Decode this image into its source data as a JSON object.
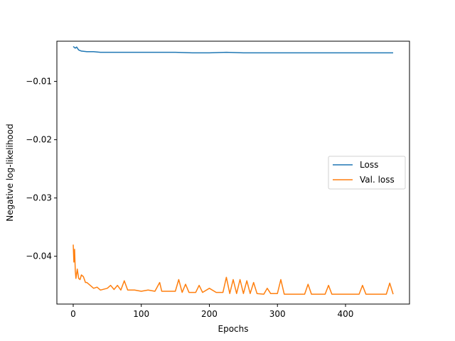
{
  "chart_data": {
    "type": "line",
    "title": "",
    "xlabel": "Epochs",
    "ylabel": "Negative log-likelihood",
    "xlim": [
      -24,
      494
    ],
    "ylim": [
      -0.0482,
      -0.0031
    ],
    "xticks": [
      0,
      100,
      200,
      300,
      400
    ],
    "xtick_labels": [
      "0",
      "100",
      "200",
      "300",
      "400"
    ],
    "yticks": [
      -0.04,
      -0.03,
      -0.02,
      -0.01
    ],
    "ytick_labels": [
      "−0.04",
      "−0.03",
      "−0.02",
      "−0.01"
    ],
    "grid": false,
    "legend_position": "center-right",
    "series": [
      {
        "name": "Loss",
        "color": "#1f77b4",
        "x": [
          0,
          3,
          5,
          8,
          12,
          20,
          30,
          40,
          50,
          75,
          100,
          125,
          150,
          175,
          200,
          225,
          250,
          275,
          300,
          325,
          350,
          375,
          400,
          425,
          450,
          470
        ],
        "y": [
          -0.004,
          -0.0043,
          -0.0041,
          -0.0046,
          -0.0048,
          -0.0049,
          -0.0049,
          -0.005,
          -0.005,
          -0.005,
          -0.005,
          -0.005,
          -0.005,
          -0.0051,
          -0.0051,
          -0.005,
          -0.0051,
          -0.0051,
          -0.0051,
          -0.0051,
          -0.0051,
          -0.0051,
          -0.0051,
          -0.0051,
          -0.0051,
          -0.0051
        ]
      },
      {
        "name": "Val. loss",
        "color": "#ff7f0e",
        "x": [
          0,
          1,
          2,
          3,
          4,
          6,
          8,
          10,
          12,
          15,
          18,
          20,
          25,
          30,
          35,
          40,
          50,
          55,
          60,
          65,
          70,
          75,
          80,
          90,
          100,
          110,
          120,
          127,
          130,
          140,
          150,
          155,
          160,
          165,
          170,
          180,
          185,
          190,
          200,
          210,
          220,
          225,
          230,
          235,
          240,
          245,
          250,
          255,
          260,
          265,
          270,
          280,
          285,
          290,
          300,
          305,
          310,
          320,
          330,
          340,
          345,
          350,
          360,
          370,
          375,
          380,
          390,
          400,
          410,
          420,
          425,
          430,
          440,
          450,
          460,
          465,
          470
        ],
        "y": [
          -0.038,
          -0.041,
          -0.0388,
          -0.0425,
          -0.0438,
          -0.0422,
          -0.0438,
          -0.044,
          -0.0432,
          -0.0435,
          -0.0445,
          -0.0445,
          -0.045,
          -0.0455,
          -0.0453,
          -0.0458,
          -0.0455,
          -0.045,
          -0.0457,
          -0.045,
          -0.0458,
          -0.0442,
          -0.0458,
          -0.0458,
          -0.046,
          -0.0458,
          -0.046,
          -0.0445,
          -0.046,
          -0.046,
          -0.046,
          -0.044,
          -0.0462,
          -0.0448,
          -0.0462,
          -0.0462,
          -0.045,
          -0.0462,
          -0.0455,
          -0.0462,
          -0.0462,
          -0.0436,
          -0.0464,
          -0.044,
          -0.0464,
          -0.044,
          -0.0464,
          -0.0442,
          -0.0464,
          -0.0445,
          -0.0464,
          -0.0465,
          -0.0455,
          -0.0464,
          -0.0464,
          -0.044,
          -0.0465,
          -0.0465,
          -0.0465,
          -0.0465,
          -0.0448,
          -0.0465,
          -0.0465,
          -0.0465,
          -0.045,
          -0.0465,
          -0.0465,
          -0.0465,
          -0.0465,
          -0.0465,
          -0.045,
          -0.0465,
          -0.0465,
          -0.0465,
          -0.0465,
          -0.0446,
          -0.0465
        ]
      }
    ]
  }
}
